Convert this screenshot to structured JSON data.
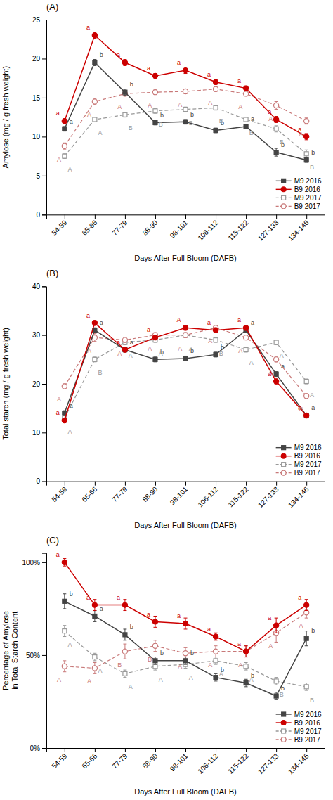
{
  "chart_data": [
    {
      "type": "line",
      "title": "(A)",
      "x_label": "Days After Full Bloom (DAFB)",
      "y_label": "Amylose (mg / g fresh weight)",
      "categories": [
        "54-59",
        "65-66",
        "77-79",
        "88-90",
        "98-101",
        "106-112",
        "115-122",
        "127-133",
        "134-146"
      ],
      "ylim": [
        0,
        25
      ],
      "yticks": [
        0,
        5,
        10,
        15,
        20,
        25
      ],
      "grid": false,
      "legend": "lower right",
      "series": [
        {
          "name": "M9 2016",
          "color": "#444444",
          "marker": "square",
          "line_style": "solid",
          "values": [
            11.0,
            19.5,
            15.7,
            11.8,
            11.9,
            10.8,
            11.3,
            8.0,
            7.0
          ],
          "errors": [
            0.3,
            0.4,
            0.4,
            0.3,
            0.3,
            0.3,
            0.3,
            0.5,
            0.3
          ],
          "annotations": [
            "a",
            "b",
            "b",
            "b",
            "b",
            "b",
            "a",
            "b",
            "b"
          ]
        },
        {
          "name": "B9 2016",
          "color": "#cc0000",
          "marker": "circle",
          "line_style": "solid",
          "values": [
            12.0,
            23.0,
            19.5,
            17.8,
            18.5,
            17.0,
            16.2,
            12.2,
            10.0
          ],
          "errors": [
            0.3,
            0.4,
            0.4,
            0.3,
            0.4,
            0.3,
            0.3,
            0.4,
            0.4
          ],
          "annotations": [
            "a",
            "a",
            "a",
            "a",
            "a",
            "a",
            "a",
            "a",
            "a"
          ]
        },
        {
          "name": "M9 2017",
          "color": "#999999",
          "marker": "square_open",
          "line_style": "dashed",
          "values": [
            7.5,
            12.2,
            12.8,
            13.3,
            13.5,
            13.7,
            12.2,
            11.0,
            7.8
          ],
          "errors": [
            0.3,
            0.3,
            0.3,
            0.3,
            0.3,
            0.3,
            0.3,
            0.4,
            0.5
          ],
          "annotations": [
            "A",
            "A",
            "B",
            "B",
            "B",
            "B",
            "B",
            "B",
            "B"
          ]
        },
        {
          "name": "B9 2017",
          "color": "#c87878",
          "marker": "circle_open",
          "line_style": "dashed",
          "values": [
            8.8,
            14.5,
            15.5,
            15.7,
            15.8,
            16.1,
            15.5,
            14.0,
            12.0
          ],
          "errors": [
            0.4,
            0.4,
            0.3,
            0.3,
            0.3,
            0.3,
            0.3,
            0.5,
            0.4
          ],
          "annotations": [
            "A",
            "A",
            "A",
            "A",
            "A",
            "A",
            "A",
            "A",
            "A"
          ]
        }
      ]
    },
    {
      "type": "line",
      "title": "(B)",
      "x_label": "Days After Full Bloom (DAFB)",
      "y_label": "Total starch (mg / g fresh weight)",
      "categories": [
        "54-59",
        "65-66",
        "77-79",
        "88-90",
        "98-101",
        "106-112",
        "115-122",
        "127-133",
        "134-146"
      ],
      "ylim": [
        0,
        40
      ],
      "yticks": [
        0,
        10,
        20,
        30,
        40
      ],
      "grid": false,
      "legend": "lower right",
      "series": [
        {
          "name": "M9 2016",
          "color": "#444444",
          "marker": "square",
          "line_style": "solid",
          "values": [
            14.0,
            31.0,
            27.0,
            25.0,
            25.2,
            26.0,
            31.0,
            22.0,
            13.5
          ],
          "errors": [
            0.5,
            0.5,
            0.5,
            0.5,
            0.5,
            0.5,
            0.5,
            0.5,
            0.5
          ],
          "annotations": [
            "a",
            "a",
            "a",
            "b",
            "b",
            "b",
            "a",
            "a",
            "a"
          ]
        },
        {
          "name": "B9 2016",
          "color": "#cc0000",
          "marker": "circle",
          "line_style": "solid",
          "values": [
            12.5,
            32.5,
            27.0,
            29.5,
            31.5,
            31.0,
            31.5,
            20.5,
            13.5
          ],
          "errors": [
            0.5,
            0.5,
            0.5,
            0.5,
            0.5,
            0.5,
            0.5,
            0.5,
            0.5
          ],
          "annotations": [
            "a",
            "a",
            "a",
            "a",
            "A",
            "a",
            "a",
            "a",
            "a"
          ]
        },
        {
          "name": "M9 2017",
          "color": "#999999",
          "marker": "square_open",
          "line_style": "dashed",
          "values": [
            13.0,
            25.0,
            28.5,
            29.0,
            30.0,
            29.0,
            27.0,
            28.5,
            20.5
          ],
          "errors": [
            0.5,
            0.5,
            0.5,
            0.5,
            0.5,
            0.5,
            0.5,
            0.5,
            0.5
          ],
          "annotations": [
            "A",
            "B",
            "A",
            "A",
            "A",
            "B",
            "A",
            "A",
            "A"
          ]
        },
        {
          "name": "B9 2017",
          "color": "#c87878",
          "marker": "circle_open",
          "line_style": "dashed",
          "values": [
            19.5,
            29.5,
            29.0,
            30.0,
            30.0,
            31.5,
            29.5,
            25.0,
            17.5
          ],
          "errors": [
            0.5,
            0.8,
            0.5,
            0.5,
            0.5,
            0.5,
            0.5,
            0.5,
            0.5
          ],
          "annotations": [
            "A",
            "A",
            "A",
            "A",
            "A",
            "A",
            "A",
            "A",
            "B"
          ]
        }
      ]
    },
    {
      "type": "line",
      "title": "(C)",
      "x_label": "Days After Full Bloom (DAFB)",
      "y_label": "Percentage of Amylose\nin Total Starch Content",
      "categories": [
        "54-59",
        "65-66",
        "77-79",
        "88-90",
        "98-101",
        "106-112",
        "115-122",
        "127-133",
        "134-146"
      ],
      "ylim": [
        0.0,
        1.05
      ],
      "yticks": [
        {
          "value": 0.0,
          "label": "0%"
        },
        {
          "value": 0.5,
          "label": "50%"
        },
        {
          "value": 1.0,
          "label": "100%"
        }
      ],
      "grid": false,
      "legend": "lower right",
      "series": [
        {
          "name": "M9 2016",
          "color": "#444444",
          "marker": "square",
          "line_style": "solid",
          "values": [
            0.79,
            0.71,
            0.61,
            0.47,
            0.47,
            0.38,
            0.35,
            0.28,
            0.59
          ],
          "errors": [
            0.04,
            0.03,
            0.03,
            0.02,
            0.02,
            0.02,
            0.02,
            0.02,
            0.04
          ],
          "annotations": [
            "b",
            "a",
            "b",
            "b",
            "b",
            "b",
            "b",
            "b",
            "b"
          ]
        },
        {
          "name": "B9 2016",
          "color": "#cc0000",
          "marker": "circle",
          "line_style": "solid",
          "values": [
            1.0,
            0.77,
            0.77,
            0.68,
            0.67,
            0.6,
            0.52,
            0.66,
            0.77
          ],
          "errors": [
            0.02,
            0.03,
            0.03,
            0.03,
            0.03,
            0.02,
            0.03,
            0.04,
            0.03
          ],
          "annotations": [
            "a",
            "a",
            "a",
            "a",
            "a",
            "a",
            "a",
            "a",
            "a"
          ]
        },
        {
          "name": "M9 2017",
          "color": "#999999",
          "marker": "square_open",
          "line_style": "dashed",
          "values": [
            0.63,
            0.49,
            0.4,
            0.44,
            0.45,
            0.47,
            0.44,
            0.36,
            0.33
          ],
          "errors": [
            0.03,
            0.02,
            0.02,
            0.02,
            0.02,
            0.02,
            0.02,
            0.02,
            0.02
          ],
          "annotations": [
            "A",
            "A",
            "A",
            "A",
            "A",
            "A",
            "A",
            "B",
            "B"
          ]
        },
        {
          "name": "B9 2017",
          "color": "#c87878",
          "marker": "circle_open",
          "line_style": "dashed",
          "values": [
            0.44,
            0.43,
            0.52,
            0.55,
            0.51,
            0.52,
            0.52,
            0.62,
            0.73
          ],
          "errors": [
            0.03,
            0.03,
            0.04,
            0.03,
            0.03,
            0.03,
            0.03,
            0.05,
            0.03
          ],
          "annotations": [
            "A",
            "A",
            "B",
            "B",
            "A",
            "A",
            "A",
            "A",
            "A"
          ]
        }
      ]
    }
  ]
}
